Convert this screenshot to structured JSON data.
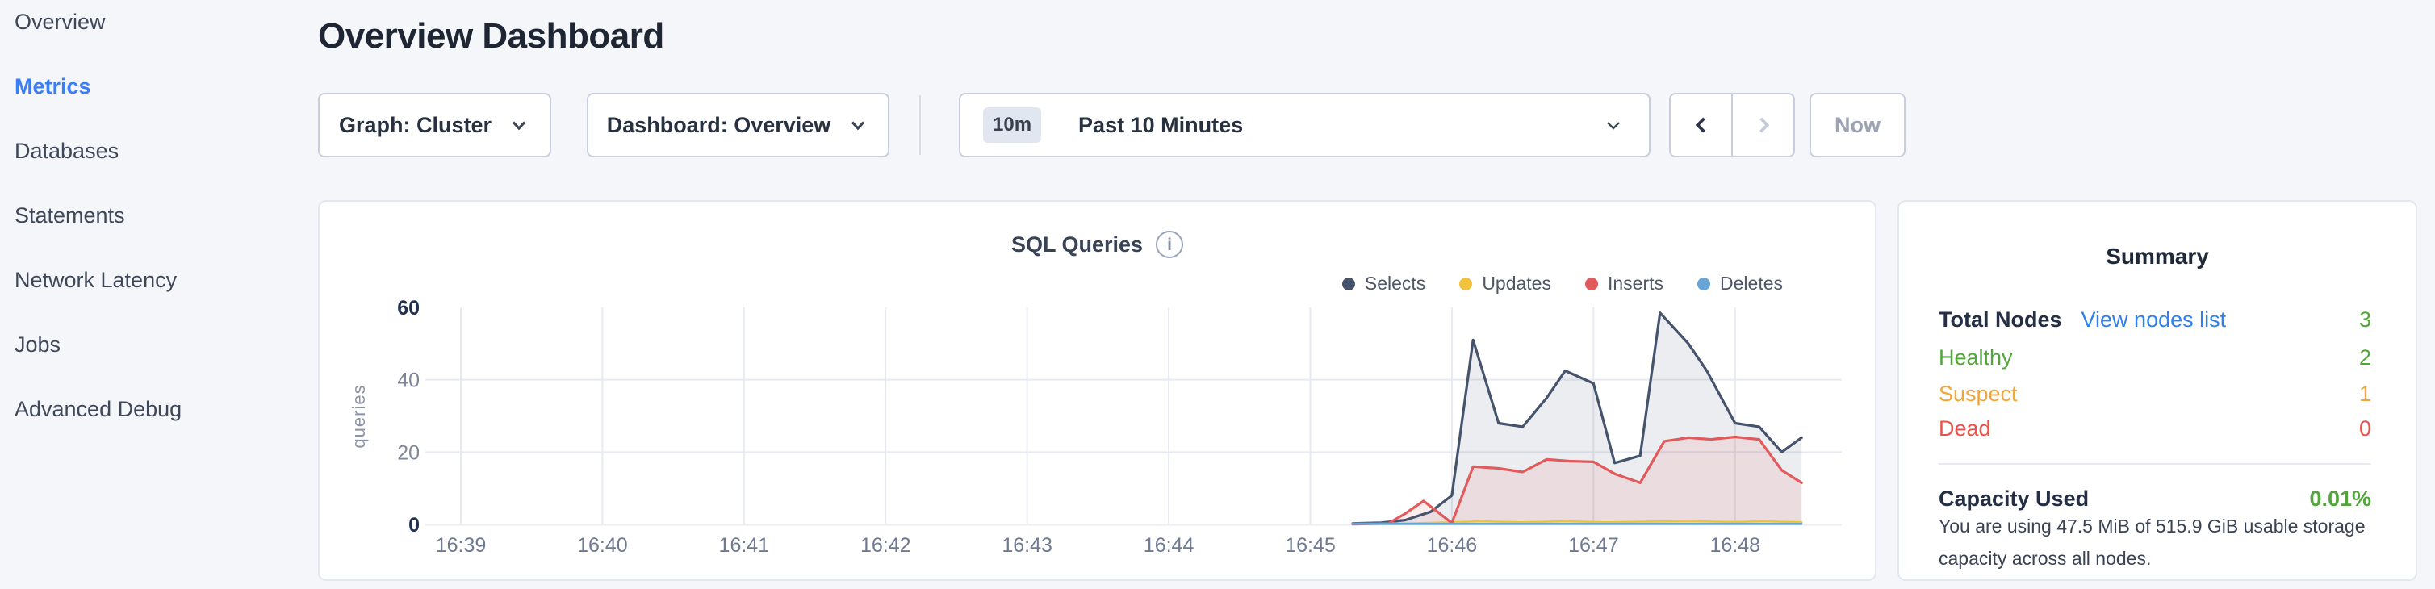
{
  "sidebar": {
    "items": [
      {
        "label": "Overview",
        "active": false
      },
      {
        "label": "Metrics",
        "active": true
      },
      {
        "label": "Databases",
        "active": false
      },
      {
        "label": "Statements",
        "active": false
      },
      {
        "label": "Network Latency",
        "active": false
      },
      {
        "label": "Jobs",
        "active": false
      },
      {
        "label": "Advanced Debug",
        "active": false
      }
    ]
  },
  "header": {
    "title": "Overview Dashboard"
  },
  "toolbar": {
    "graph_dropdown": {
      "label": "Graph: Cluster"
    },
    "dashboard_dropdown": {
      "label": "Dashboard: Overview"
    },
    "time_picker": {
      "badge": "10m",
      "label": "Past 10 Minutes"
    },
    "now_label": "Now"
  },
  "icons": {
    "info_glyph": "i"
  },
  "chart_data": {
    "type": "area",
    "title": "SQL Queries",
    "xlabel": "",
    "ylabel": "queries",
    "ylim": [
      0,
      60
    ],
    "yticks": [
      0,
      20,
      40,
      60
    ],
    "x_ticks": [
      "16:39",
      "16:40",
      "16:41",
      "16:42",
      "16:43",
      "16:44",
      "16:45",
      "16:46",
      "16:47",
      "16:48"
    ],
    "x_unit": "minutes after 16:39",
    "grid": true,
    "legend_position": "top-right",
    "series": [
      {
        "name": "Selects",
        "color": "#45536d",
        "fill": "rgba(69,83,109,0.10)",
        "line_width": 3.2,
        "points": [
          [
            6.3,
            0.3
          ],
          [
            6.5,
            0.5
          ],
          [
            6.67,
            1.2
          ],
          [
            6.85,
            3.5
          ],
          [
            7.0,
            8
          ],
          [
            7.15,
            51
          ],
          [
            7.33,
            28
          ],
          [
            7.5,
            27
          ],
          [
            7.67,
            35
          ],
          [
            7.8,
            42.5
          ],
          [
            8.0,
            39
          ],
          [
            8.15,
            17
          ],
          [
            8.33,
            19
          ],
          [
            8.47,
            58.5
          ],
          [
            8.67,
            50
          ],
          [
            8.8,
            42.5
          ],
          [
            9.0,
            28
          ],
          [
            9.17,
            27
          ],
          [
            9.33,
            20
          ],
          [
            9.47,
            24
          ]
        ]
      },
      {
        "name": "Updates",
        "color": "#f2c13e",
        "fill": "none",
        "line_width": 2.6,
        "points": [
          [
            6.3,
            0.2
          ],
          [
            6.7,
            0.3
          ],
          [
            7.0,
            0.6
          ],
          [
            7.2,
            0.9
          ],
          [
            7.5,
            0.6
          ],
          [
            7.8,
            0.9
          ],
          [
            8.1,
            0.6
          ],
          [
            8.4,
            0.8
          ],
          [
            8.7,
            0.9
          ],
          [
            9.0,
            0.7
          ],
          [
            9.2,
            0.9
          ],
          [
            9.47,
            0.6
          ]
        ]
      },
      {
        "name": "Inserts",
        "color": "#e35a5c",
        "fill": "rgba(227,90,92,0.11)",
        "line_width": 3.2,
        "points": [
          [
            6.3,
            0.1
          ],
          [
            6.55,
            0.3
          ],
          [
            6.67,
            3
          ],
          [
            6.8,
            6.5
          ],
          [
            7.0,
            0.4
          ],
          [
            7.15,
            16
          ],
          [
            7.33,
            15.5
          ],
          [
            7.5,
            14.5
          ],
          [
            7.67,
            18
          ],
          [
            7.83,
            17.5
          ],
          [
            8.0,
            17.3
          ],
          [
            8.15,
            14
          ],
          [
            8.33,
            11.5
          ],
          [
            8.5,
            23
          ],
          [
            8.67,
            24
          ],
          [
            8.83,
            23.5
          ],
          [
            9.0,
            24.2
          ],
          [
            9.17,
            23.5
          ],
          [
            9.33,
            15
          ],
          [
            9.47,
            11.5
          ]
        ]
      },
      {
        "name": "Deletes",
        "color": "#67a5d7",
        "fill": "none",
        "line_width": 2.6,
        "points": [
          [
            6.3,
            0.15
          ],
          [
            9.47,
            0.15
          ]
        ]
      }
    ]
  },
  "summary": {
    "title": "Summary",
    "total_nodes_label": "Total Nodes",
    "view_nodes_link": "View nodes list",
    "total_nodes_value": "3",
    "rows": [
      {
        "label": "Healthy",
        "value": "2",
        "color": "#51a53a"
      },
      {
        "label": "Suspect",
        "value": "1",
        "color": "#f0a63c"
      },
      {
        "label": "Dead",
        "value": "0",
        "color": "#e8524a"
      }
    ],
    "capacity_label": "Capacity Used",
    "capacity_value": "0.01%",
    "capacity_description": "You are using 47.5 MiB of 515.9 GiB usable storage capacity across all nodes."
  },
  "colors": {
    "accent_blue": "#3b7ef6",
    "link_blue": "#2f80ed",
    "healthy_green": "#51a53a",
    "suspect_orange": "#f0a63c",
    "dead_red": "#e8524a",
    "page_bg": "#f4f6fa",
    "grid_line": "#e7eaf1"
  }
}
